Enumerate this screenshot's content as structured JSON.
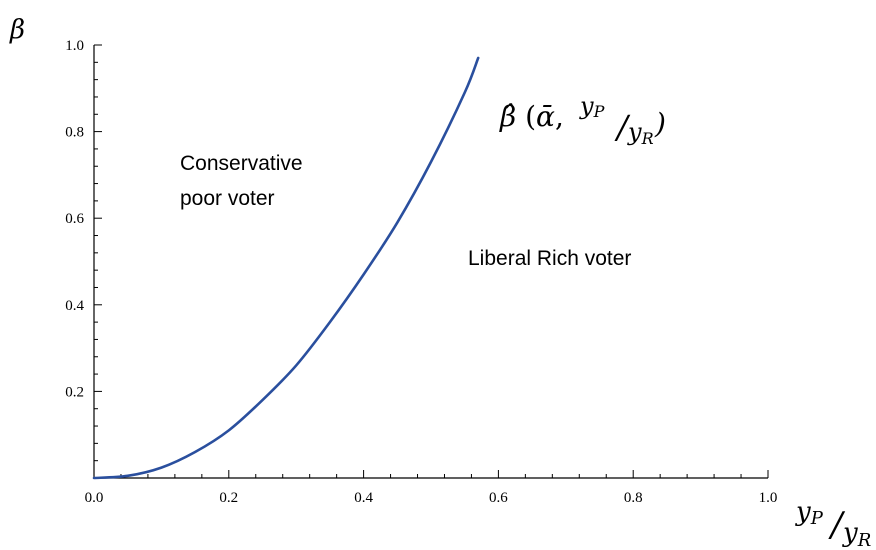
{
  "chart_data": {
    "type": "line",
    "x_tick_labels": [
      "0.0",
      "0.2",
      "0.4",
      "0.6",
      "0.8",
      "1.0"
    ],
    "y_tick_labels": [
      "0.2",
      "0.4",
      "0.6",
      "0.8",
      "1.0"
    ],
    "xlim": [
      0,
      1
    ],
    "ylim": [
      0,
      1
    ],
    "ylabel": "β",
    "xlabel": {
      "numerator": "y",
      "numerator_sub": "P",
      "slash": "/",
      "denominator": "y",
      "denominator_sub": "R"
    },
    "curve_label": {
      "symbol": "β̂",
      "open": " (",
      "alpha": "ᾱ",
      "comma": ",",
      "num": "y",
      "num_sub": "P",
      "slash": "/",
      "den": "y",
      "den_sub": "R",
      "close": ")"
    },
    "annotations": {
      "left_region_line1": "Conservative",
      "left_region_line2": "poor voter",
      "right_region": "Liberal Rich voter"
    },
    "grid": false,
    "series": [
      {
        "color": "#2a4f9e",
        "x": [
          0.0,
          0.05,
          0.1,
          0.15,
          0.2,
          0.25,
          0.3,
          0.35,
          0.4,
          0.45,
          0.5,
          0.55,
          0.57
        ],
        "y": [
          0.0,
          0.005,
          0.024,
          0.06,
          0.11,
          0.18,
          0.26,
          0.36,
          0.47,
          0.59,
          0.73,
          0.89,
          0.97
        ]
      }
    ]
  }
}
